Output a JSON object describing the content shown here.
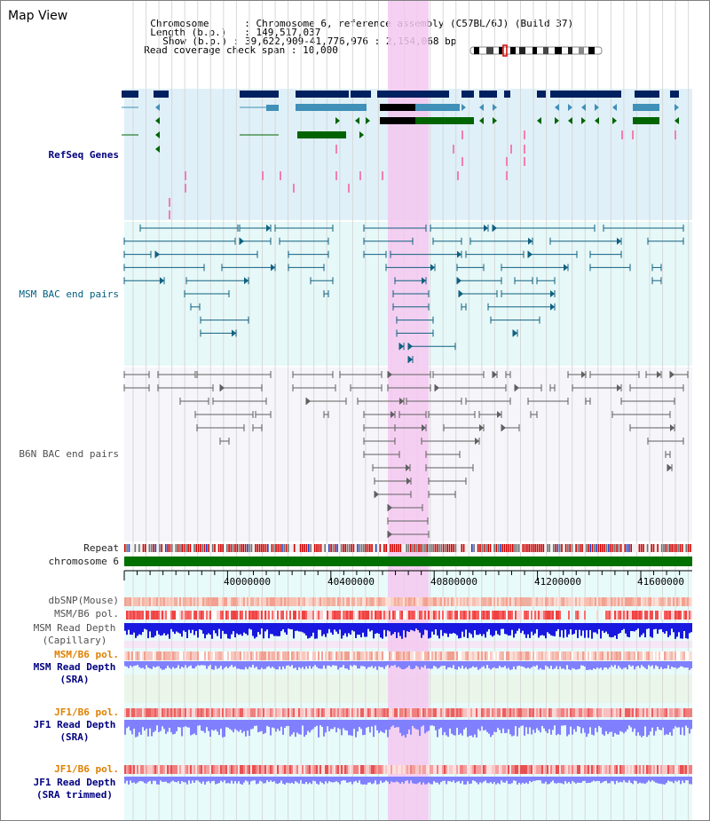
{
  "window": {
    "title": "Map View"
  },
  "info": {
    "chromosome_label": "Chromosome",
    "chromosome_value": "Chromosome 6, reference assembly (C57BL/6J) (Build 37)",
    "length_label": "Length (b.p.)",
    "length_value": "149,517,037",
    "show_label": "Show (b.p.)",
    "show_value": "39,622,909-41,776,976 : 2,154,068 bp",
    "span_label": "Read coverage check span",
    "span_value": "10,000"
  },
  "tracks": {
    "refseq": "RefSeq Genes",
    "msm_bac": "MSM BAC end pairs",
    "b6n_bac": "B6N BAC end pairs",
    "repeat": "Repeat",
    "chromosome": "chromosome 6",
    "dbsnp": "dbSNP(Mouse)",
    "msm_b6_pol": "MSM/B6 pol.",
    "msm_depth_cap_1": "MSM Read Depth",
    "msm_depth_cap_2": "(Capillary)",
    "msm_b6_pol_sra": "MSM/B6 pol.",
    "msm_depth_sra_1": "MSM Read Depth",
    "msm_depth_sra_2": "(SRA)",
    "jf1_b6_pol": "JF1/B6 pol.",
    "jf1_depth_sra_1": "JF1 Read Depth",
    "jf1_depth_sra_2": "(SRA)",
    "jf1_b6_pol_trim": "JF1/B6 pol.",
    "jf1_depth_trim_1": "JF1 Read Depth",
    "jf1_depth_trim_2": "(SRA trimmed)"
  },
  "axis": {
    "ticks": [
      "40000000",
      "40400000",
      "40800000",
      "41200000",
      "41600000"
    ]
  },
  "colors": {
    "highlight": "#f4c8f0",
    "refseq_bg": "#dff0f8",
    "msm_bg": "#e6f8f8",
    "b6n_bg": "#f5f5fa",
    "gene_navy": "#002060",
    "gene_steel": "#4090b8",
    "gene_green": "#006400",
    "msm_pair": "#106080",
    "b6n_pair": "#606060",
    "chrom_bar": "#007000",
    "sra_blue": "#8080ff",
    "cap_blue": "#1818e0"
  }
}
